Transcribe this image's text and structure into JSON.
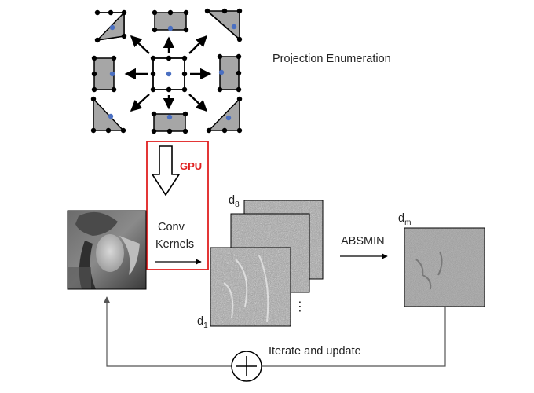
{
  "labels": {
    "projection": "Projection Enumeration",
    "gpu": "GPU",
    "conv_line1": "Conv",
    "conv_line2": "Kernels",
    "absmin": "ABSMIN",
    "iterate": "Iterate and update",
    "d8_base": "d",
    "d8_sub": "8",
    "d1_base": "d",
    "d1_sub": "1",
    "dm_base": "d",
    "dm_sub": "m",
    "ellipsis": "⋮"
  },
  "projections": [
    {
      "position": "top-left",
      "fill": "triangle-upper-right"
    },
    {
      "position": "top",
      "fill": "rectangle-top"
    },
    {
      "position": "top-right",
      "fill": "triangle-upper-left"
    },
    {
      "position": "left",
      "fill": "rectangle-left"
    },
    {
      "position": "center",
      "fill": "none"
    },
    {
      "position": "right",
      "fill": "rectangle-right"
    },
    {
      "position": "bottom-left",
      "fill": "triangle-lower-right"
    },
    {
      "position": "bottom",
      "fill": "rectangle-bottom"
    },
    {
      "position": "bottom-right",
      "fill": "triangle-lower-left"
    }
  ],
  "colors": {
    "gpu_box": "#e02020",
    "center_dot": "#4a6fc1",
    "shape_fill": "#a6a6a6",
    "vertex": "#000000",
    "line": "#555555"
  }
}
